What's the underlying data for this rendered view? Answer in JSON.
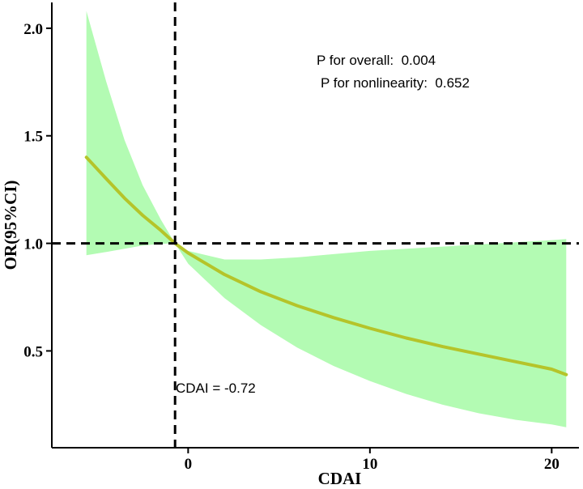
{
  "chart_data": {
    "type": "line",
    "title": "",
    "xlabel": "CDAI",
    "ylabel": "OR(95%CI)",
    "xlim": [
      -7.5,
      21.5
    ],
    "ylim": [
      0.05,
      2.12
    ],
    "x_ticks": [
      0,
      10,
      20
    ],
    "x_tick_labels": [
      "0",
      "10",
      "20"
    ],
    "y_ticks": [
      0.5,
      1.0,
      1.5,
      2.0
    ],
    "y_tick_labels": [
      "0.5",
      "1.0",
      "1.5",
      "2.0"
    ],
    "reference_lines": {
      "hline_y": 1.0,
      "vline_x": -0.72
    },
    "series": [
      {
        "name": "OR",
        "color": "#b5c42a",
        "x": [
          -5.6,
          -4.5,
          -3.5,
          -2.5,
          -1.5,
          -0.72,
          0,
          2,
          4,
          6,
          8,
          10,
          12,
          14,
          16,
          18,
          20,
          20.8
        ],
        "values": [
          1.4,
          1.3,
          1.21,
          1.13,
          1.06,
          1.0,
          0.955,
          0.855,
          0.775,
          0.71,
          0.655,
          0.605,
          0.56,
          0.52,
          0.485,
          0.45,
          0.415,
          0.39
        ]
      }
    ],
    "ci_band": {
      "color": "#b3fbb3",
      "x": [
        -5.6,
        -4.5,
        -3.5,
        -2.5,
        -1.5,
        -0.72,
        0,
        2,
        4,
        6,
        8,
        10,
        12,
        14,
        16,
        18,
        20,
        20.8
      ],
      "lower": [
        0.945,
        0.96,
        0.975,
        0.99,
        0.998,
        1.0,
        0.905,
        0.745,
        0.62,
        0.515,
        0.43,
        0.36,
        0.3,
        0.25,
        0.21,
        0.18,
        0.158,
        0.145
      ],
      "upper": [
        2.08,
        1.75,
        1.48,
        1.27,
        1.11,
        1.0,
        0.965,
        0.925,
        0.925,
        0.935,
        0.95,
        0.965,
        0.975,
        0.985,
        0.995,
        1.005,
        1.015,
        1.02
      ]
    },
    "annotations": [
      {
        "id": "p_overall",
        "text": "P for overall:  0.004"
      },
      {
        "id": "p_nonlinear",
        "text": "P for nonlinearity:  0.652"
      },
      {
        "id": "cutoff",
        "text": "CDAI = -0.72"
      }
    ]
  }
}
